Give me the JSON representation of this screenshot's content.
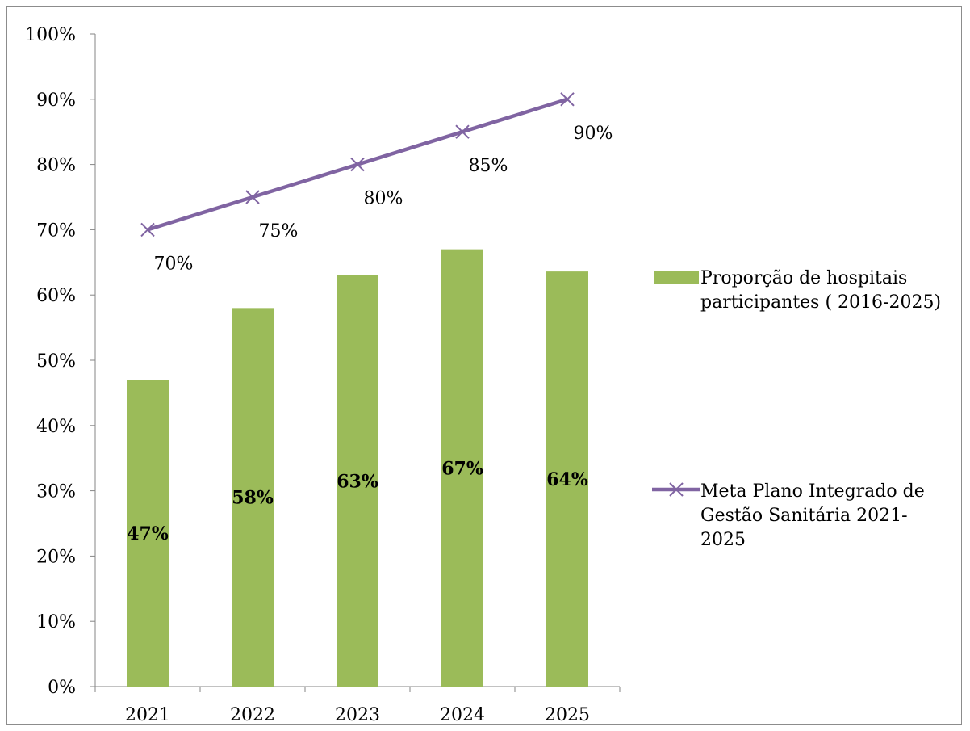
{
  "chart_data": {
    "type": "bar",
    "categories": [
      "2021",
      "2022",
      "2023",
      "2024",
      "2025"
    ],
    "ylim": [
      0,
      100
    ],
    "y_ticks": [
      "0%",
      "10%",
      "20%",
      "30%",
      "40%",
      "50%",
      "60%",
      "70%",
      "80%",
      "90%",
      "100%"
    ],
    "grid": false,
    "legend_position": "right",
    "series": [
      {
        "name": "Proporção de hospitais participantes ( 2016-2025)",
        "legend_lines": [
          "Proporção de hospitais",
          "participantes ( 2016-2025)"
        ],
        "type": "bar",
        "color": "#9bbb59",
        "values": [
          47,
          58,
          63,
          67,
          63.6
        ],
        "labels": [
          "47%",
          "58%",
          "63%",
          "67%",
          "64%"
        ]
      },
      {
        "name": "Meta Plano Integrado de Gestão Sanitária 2021-2025",
        "legend_lines": [
          "Meta Plano Integrado de",
          "Gestão Sanitária 2021-",
          "2025"
        ],
        "type": "line",
        "marker": "x",
        "color": "#8064a2",
        "values": [
          70,
          75,
          80,
          85,
          90
        ],
        "labels": [
          "70%",
          "75%",
          "80%",
          "85%",
          "90%"
        ]
      }
    ]
  }
}
